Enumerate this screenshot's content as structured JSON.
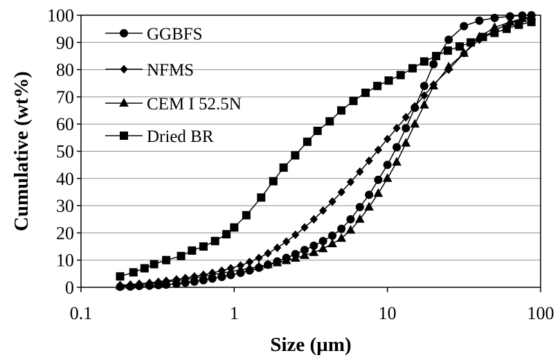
{
  "chart_data": {
    "type": "line",
    "title": "",
    "xlabel": "Size (µm)",
    "ylabel": "Cumulative (wt%)",
    "xscale": "log",
    "xlim": [
      0.1,
      100
    ],
    "ylim": [
      0,
      100
    ],
    "xticks": [
      "0.1",
      "1",
      "10",
      "100"
    ],
    "yticks": [
      "0",
      "10",
      "20",
      "30",
      "40",
      "50",
      "60",
      "70",
      "80",
      "90",
      "100"
    ],
    "grid": "horizontal",
    "legend": "top-left",
    "series": [
      {
        "name": "GGBFS",
        "marker": "circle",
        "x": [
          0.18,
          0.21,
          0.24,
          0.28,
          0.32,
          0.36,
          0.42,
          0.48,
          0.55,
          0.63,
          0.72,
          0.83,
          0.95,
          1.1,
          1.26,
          1.45,
          1.66,
          1.91,
          2.19,
          2.51,
          2.88,
          3.31,
          3.8,
          4.37,
          5.01,
          5.75,
          6.61,
          7.59,
          8.71,
          10.0,
          11.5,
          13.2,
          15.1,
          17.4,
          20.0,
          25.1,
          31.6,
          39.8,
          50.1,
          63.1,
          75.9,
          87.1
        ],
        "y": [
          0.2,
          0.3,
          0.5,
          0.6,
          0.8,
          1.0,
          1.3,
          1.7,
          2.1,
          2.6,
          3.2,
          3.8,
          4.5,
          5.3,
          6.2,
          7.2,
          8.3,
          9.5,
          10.8,
          12.2,
          13.7,
          15.3,
          17.0,
          19.0,
          21.5,
          25.0,
          29.5,
          34.0,
          39.5,
          45.0,
          51.5,
          58.5,
          66.0,
          74.0,
          82.0,
          91.0,
          96.0,
          98.0,
          99.0,
          99.6,
          99.9,
          100.0
        ]
      },
      {
        "name": "NFMS",
        "marker": "diamond",
        "x": [
          0.18,
          0.21,
          0.24,
          0.28,
          0.32,
          0.36,
          0.42,
          0.48,
          0.55,
          0.63,
          0.72,
          0.83,
          0.95,
          1.1,
          1.26,
          1.45,
          1.66,
          1.91,
          2.19,
          2.51,
          2.88,
          3.31,
          3.8,
          4.37,
          5.01,
          5.75,
          6.61,
          7.59,
          8.71,
          10.0,
          11.5,
          13.2,
          15.1,
          17.4,
          20.0,
          25.1,
          31.6,
          39.8,
          50.1,
          63.1,
          75.9,
          87.1
        ],
        "y": [
          0.8,
          1.0,
          1.3,
          1.6,
          2.0,
          2.4,
          2.9,
          3.4,
          4.0,
          4.6,
          5.3,
          6.1,
          7.0,
          8.0,
          9.3,
          10.8,
          12.5,
          14.5,
          16.8,
          19.3,
          22.0,
          25.0,
          28.2,
          31.5,
          35.0,
          38.7,
          42.5,
          46.5,
          50.5,
          54.5,
          58.5,
          62.5,
          66.5,
          70.5,
          74.5,
          80.0,
          86.0,
          91.0,
          94.5,
          97.0,
          98.5,
          99.0
        ]
      },
      {
        "name": "CEM I 52.5N",
        "marker": "triangle",
        "x": [
          0.18,
          0.21,
          0.24,
          0.28,
          0.32,
          0.36,
          0.42,
          0.48,
          0.55,
          0.63,
          0.72,
          0.83,
          0.95,
          1.1,
          1.26,
          1.45,
          1.66,
          1.91,
          2.19,
          2.51,
          2.88,
          3.31,
          3.8,
          4.37,
          5.01,
          5.75,
          6.61,
          7.59,
          8.71,
          10.0,
          11.5,
          13.2,
          15.1,
          17.4,
          20.0,
          25.1,
          31.6,
          39.8,
          50.1,
          63.1,
          75.9,
          87.1
        ],
        "y": [
          0.5,
          0.7,
          1.0,
          1.3,
          1.6,
          2.0,
          2.4,
          2.9,
          3.4,
          4.0,
          4.6,
          5.2,
          5.8,
          6.4,
          7.0,
          7.6,
          8.3,
          9.0,
          9.8,
          10.7,
          11.7,
          12.8,
          14.2,
          16.0,
          18.0,
          21.0,
          25.0,
          29.5,
          34.5,
          40.0,
          46.0,
          53.0,
          60.0,
          67.0,
          74.0,
          81.0,
          86.0,
          92.0,
          95.5,
          97.5,
          98.8,
          99.5
        ]
      },
      {
        "name": "Dried BR",
        "marker": "square",
        "x": [
          0.18,
          0.22,
          0.26,
          0.3,
          0.36,
          0.45,
          0.53,
          0.63,
          0.75,
          0.89,
          1.0,
          1.2,
          1.5,
          1.8,
          2.1,
          2.5,
          3.0,
          3.5,
          4.2,
          5.0,
          6.0,
          7.2,
          8.6,
          10.2,
          12.2,
          14.6,
          17.4,
          20.8,
          24.8,
          29.6,
          35.0,
          42.0,
          50.0,
          60.0,
          72.0,
          87.0
        ],
        "y": [
          4.0,
          5.5,
          7.0,
          8.5,
          10.0,
          11.5,
          13.5,
          15.0,
          17.0,
          19.5,
          22.0,
          26.5,
          33.0,
          39.0,
          44.0,
          48.5,
          53.5,
          57.5,
          61.0,
          65.0,
          68.5,
          71.5,
          74.0,
          76.0,
          78.0,
          80.5,
          83.0,
          85.0,
          87.0,
          88.5,
          90.0,
          92.0,
          93.5,
          95.0,
          96.5,
          97.5
        ]
      }
    ]
  }
}
